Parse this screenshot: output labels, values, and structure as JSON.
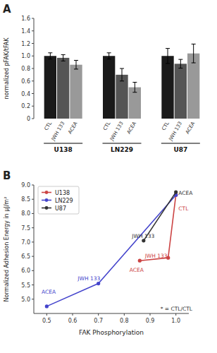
{
  "chart_data": [
    {
      "type": "bar",
      "title": "A",
      "y_label": "normalized pFAK/tFAK",
      "categories": [
        "U138",
        "LN229",
        "U87"
      ],
      "series": [
        {
          "name": "CTL",
          "color": "#1a1a1a",
          "values": [
            1.0,
            1.0,
            1.0
          ],
          "errors": [
            0.05,
            0.05,
            0.12
          ]
        },
        {
          "name": "JWH 133",
          "color": "#555555",
          "values": [
            0.97,
            0.7,
            0.875
          ],
          "errors": [
            0.05,
            0.1,
            0.07
          ]
        },
        {
          "name": "ACEA",
          "color": "#999999",
          "values": [
            0.86,
            0.5,
            1.04
          ],
          "errors": [
            0.07,
            0.08,
            0.15
          ]
        }
      ],
      "ylim": [
        0,
        1.6
      ],
      "yticks": [
        0,
        0.2,
        0.4,
        0.6,
        0.8,
        {
          "value": 1.0,
          "label": "1.0"
        },
        1.2,
        1.4,
        1.6
      ],
      "grid": false
    },
    {
      "type": "line",
      "title": "B",
      "x_label": "FAK Phosphorylation",
      "y_label": "Normalized Adhesion Energy in μJ/m²",
      "series": [
        {
          "name": "U138",
          "color": "#cc4444",
          "marker": "circle",
          "x": [
            0.86,
            0.97,
            1.0
          ],
          "values": [
            6.35,
            6.45,
            8.65
          ]
        },
        {
          "name": "LN229",
          "color": "#4444cc",
          "marker": "circle",
          "x": [
            0.5,
            0.7,
            1.0
          ],
          "values": [
            4.75,
            5.55,
            8.65
          ]
        },
        {
          "name": "U87",
          "color": "#333333",
          "marker": "circle",
          "x": [
            0.875,
            1.0
          ],
          "values": [
            7.05,
            8.75
          ]
        }
      ],
      "annotations": [
        {
          "text": "ACEA",
          "x": 0.48,
          "y": 5.2,
          "color": "#4444cc"
        },
        {
          "text": "JWH 133",
          "x": 0.62,
          "y": 5.65,
          "color": "#4444cc"
        },
        {
          "text": "ACEA",
          "x": 0.82,
          "y": 5.95,
          "color": "#cc4444"
        },
        {
          "text": "JWH 133",
          "x": 0.88,
          "y": 6.45,
          "color": "#cc4444"
        },
        {
          "text": "CTL",
          "x": 1.01,
          "y": 8.1,
          "color": "#cc4444"
        },
        {
          "text": "JWH 133",
          "x": 0.83,
          "y": 7.15,
          "color": "#333333"
        },
        {
          "text": "ACEA",
          "x": 1.01,
          "y": 8.65,
          "color": "#333333"
        },
        {
          "text": "* = CTL/CTL",
          "x": 0.94,
          "y": 4.6,
          "color": "#333333"
        }
      ],
      "xlim": [
        0.45,
        1.05
      ],
      "ylim": [
        4.5,
        9.0
      ],
      "xticks": [
        0.5,
        0.6,
        0.7,
        0.8,
        0.9,
        {
          "value": 1.0,
          "label": "1.0"
        }
      ],
      "yticks": [
        {
          "value": 5.0,
          "label": "5.0"
        },
        5.5,
        {
          "value": 6.0,
          "label": "6.0"
        },
        6.5,
        {
          "value": 7.0,
          "label": "7.0"
        },
        7.5,
        {
          "value": 8.0,
          "label": "8.0"
        },
        8.5,
        {
          "value": 9.0,
          "label": "9.0"
        }
      ],
      "legend": "upper left",
      "grid": false
    }
  ]
}
